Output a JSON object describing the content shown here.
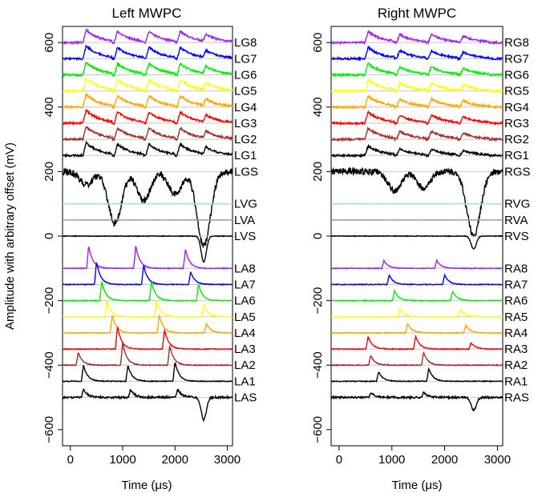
{
  "chart_data": [
    {
      "type": "line",
      "title": "Left MWPC",
      "xlabel": "Time (μs)",
      "ylabel": "Amplitude with arbitrary offset (mV)",
      "xlim": [
        -150,
        3100
      ],
      "ylim": [
        -650,
        650
      ],
      "x_ticks": [
        "0",
        "1000",
        "2000",
        "3000"
      ],
      "y_ticks": [
        "-600",
        "-400",
        "-200",
        "0",
        "200",
        "400",
        "600"
      ],
      "grid": "horizontal baseline per channel",
      "series": [
        {
          "name": "LG8",
          "color": "#A020F0",
          "baseline": 600,
          "signal": "cathode",
          "peaks": [
            [
              300,
              40
            ],
            [
              900,
              35
            ],
            [
              1500,
              35
            ],
            [
              2100,
              35
            ],
            [
              2600,
              25
            ]
          ]
        },
        {
          "name": "LG7",
          "color": "#0000FF",
          "baseline": 550,
          "signal": "cathode",
          "peaks": [
            [
              300,
              40
            ],
            [
              900,
              35
            ],
            [
              1500,
              35
            ],
            [
              2100,
              35
            ],
            [
              2600,
              25
            ]
          ]
        },
        {
          "name": "LG6",
          "color": "#00EE00",
          "baseline": 500,
          "signal": "cathode",
          "peaks": [
            [
              300,
              40
            ],
            [
              900,
              35
            ],
            [
              1500,
              35
            ],
            [
              2100,
              35
            ],
            [
              2600,
              25
            ]
          ]
        },
        {
          "name": "LG5",
          "color": "#FFFF00",
          "baseline": 450,
          "signal": "cathode",
          "peaks": [
            [
              300,
              40
            ],
            [
              900,
              35
            ],
            [
              1500,
              35
            ],
            [
              2100,
              35
            ],
            [
              2600,
              25
            ]
          ]
        },
        {
          "name": "LG4",
          "color": "#FFA500",
          "baseline": 400,
          "signal": "cathode",
          "peaks": [
            [
              300,
              40
            ],
            [
              900,
              35
            ],
            [
              1500,
              35
            ],
            [
              2100,
              35
            ],
            [
              2600,
              25
            ]
          ]
        },
        {
          "name": "LG3",
          "color": "#FF0000",
          "baseline": 350,
          "signal": "cathode",
          "peaks": [
            [
              300,
              40
            ],
            [
              900,
              35
            ],
            [
              1500,
              35
            ],
            [
              2100,
              35
            ],
            [
              2600,
              25
            ]
          ]
        },
        {
          "name": "LG2",
          "color": "#A52A2A",
          "baseline": 300,
          "signal": "cathode",
          "peaks": [
            [
              300,
              40
            ],
            [
              900,
              35
            ],
            [
              1500,
              35
            ],
            [
              2100,
              35
            ],
            [
              2600,
              25
            ]
          ]
        },
        {
          "name": "LG1",
          "color": "#000000",
          "baseline": 250,
          "signal": "cathode",
          "peaks": [
            [
              300,
              40
            ],
            [
              900,
              35
            ],
            [
              1500,
              35
            ],
            [
              2100,
              35
            ],
            [
              2600,
              25
            ]
          ]
        },
        {
          "name": "LGS",
          "color": "#000000",
          "baseline": 200,
          "signal": "sum",
          "dips": [
            [
              300,
              40
            ],
            [
              850,
              160
            ],
            [
              1400,
              90
            ],
            [
              2000,
              70
            ],
            [
              2550,
              230
            ]
          ]
        },
        {
          "name": "LVG",
          "color": "#ADD8E6",
          "baseline": 100,
          "signal": "flat"
        },
        {
          "name": "LVA",
          "color": "#999999",
          "baseline": 50,
          "signal": "flat"
        },
        {
          "name": "LVS",
          "color": "#000000",
          "baseline": 0,
          "signal": "veto",
          "dips": [
            [
              2550,
              80
            ]
          ]
        },
        {
          "name": "LA8",
          "color": "#A020F0",
          "baseline": -100,
          "signal": "anode",
          "peaks": [
            [
              350,
              70
            ],
            [
              1250,
              70
            ],
            [
              2200,
              60
            ]
          ]
        },
        {
          "name": "LA7",
          "color": "#0000FF",
          "baseline": -150,
          "signal": "anode",
          "peaks": [
            [
              500,
              70
            ],
            [
              1400,
              60
            ],
            [
              2300,
              40
            ]
          ]
        },
        {
          "name": "LA6",
          "color": "#00EE00",
          "baseline": -200,
          "signal": "anode",
          "peaks": [
            [
              600,
              60
            ],
            [
              1550,
              60
            ],
            [
              2450,
              50
            ]
          ]
        },
        {
          "name": "LA5",
          "color": "#FFFF00",
          "baseline": -250,
          "signal": "anode",
          "peaks": [
            [
              700,
              50
            ],
            [
              1650,
              50
            ],
            [
              2550,
              40
            ]
          ]
        },
        {
          "name": "LA4",
          "color": "#FFA500",
          "baseline": -300,
          "signal": "anode",
          "peaks": [
            [
              800,
              55
            ],
            [
              1700,
              55
            ],
            [
              2600,
              30
            ]
          ]
        },
        {
          "name": "LA3",
          "color": "#FF0000",
          "baseline": -350,
          "signal": "anode",
          "peaks": [
            [
              900,
              70
            ],
            [
              1800,
              60
            ]
          ]
        },
        {
          "name": "LA2",
          "color": "#A52A2A",
          "baseline": -400,
          "signal": "anode",
          "peaks": [
            [
              150,
              40
            ],
            [
              1000,
              70
            ],
            [
              1900,
              60
            ]
          ]
        },
        {
          "name": "LA1",
          "color": "#000000",
          "baseline": -450,
          "signal": "anode",
          "peaks": [
            [
              250,
              50
            ],
            [
              1100,
              50
            ],
            [
              2000,
              60
            ]
          ]
        },
        {
          "name": "LAS",
          "color": "#000000",
          "baseline": -500,
          "signal": "anodesum",
          "peaks": [
            [
              250,
              25
            ],
            [
              1150,
              25
            ],
            [
              2050,
              25
            ]
          ],
          "dips": [
            [
              2550,
              70
            ]
          ]
        }
      ]
    },
    {
      "type": "line",
      "title": "Right MWPC",
      "xlabel": "Time (μs)",
      "ylabel": "",
      "xlim": [
        -150,
        3100
      ],
      "ylim": [
        -650,
        650
      ],
      "x_ticks": [
        "0",
        "1000",
        "2000",
        "3000"
      ],
      "y_ticks": [
        "-600",
        "-400",
        "-200",
        "0",
        "200",
        "400",
        "600"
      ],
      "grid": "horizontal baseline per channel",
      "series": [
        {
          "name": "RG8",
          "color": "#A020F0",
          "baseline": 600,
          "signal": "cathode",
          "peaks": [
            [
              550,
              35
            ],
            [
              1150,
              25
            ],
            [
              1750,
              25
            ],
            [
              2350,
              20
            ]
          ]
        },
        {
          "name": "RG7",
          "color": "#0000FF",
          "baseline": 550,
          "signal": "cathode",
          "peaks": [
            [
              550,
              35
            ],
            [
              1150,
              25
            ],
            [
              1750,
              25
            ],
            [
              2350,
              20
            ]
          ]
        },
        {
          "name": "RG6",
          "color": "#00EE00",
          "baseline": 500,
          "signal": "cathode",
          "peaks": [
            [
              550,
              35
            ],
            [
              1150,
              25
            ],
            [
              1750,
              25
            ],
            [
              2350,
              20
            ]
          ]
        },
        {
          "name": "RG5",
          "color": "#FFFF00",
          "baseline": 450,
          "signal": "cathode",
          "peaks": [
            [
              550,
              35
            ],
            [
              1150,
              25
            ],
            [
              1750,
              25
            ],
            [
              2350,
              20
            ]
          ]
        },
        {
          "name": "RG4",
          "color": "#FFA500",
          "baseline": 400,
          "signal": "cathode",
          "peaks": [
            [
              550,
              35
            ],
            [
              1150,
              25
            ],
            [
              1750,
              25
            ],
            [
              2350,
              20
            ]
          ]
        },
        {
          "name": "RG3",
          "color": "#FF0000",
          "baseline": 350,
          "signal": "cathode",
          "peaks": [
            [
              550,
              35
            ],
            [
              1150,
              25
            ],
            [
              1750,
              25
            ],
            [
              2350,
              20
            ]
          ]
        },
        {
          "name": "RG2",
          "color": "#A52A2A",
          "baseline": 300,
          "signal": "cathode",
          "peaks": [
            [
              550,
              35
            ],
            [
              1150,
              25
            ],
            [
              1750,
              25
            ],
            [
              2350,
              20
            ]
          ]
        },
        {
          "name": "RG1",
          "color": "#000000",
          "baseline": 250,
          "signal": "cathode",
          "peaks": [
            [
              550,
              30
            ],
            [
              1150,
              20
            ],
            [
              1750,
              20
            ],
            [
              2350,
              15
            ]
          ]
        },
        {
          "name": "RGS",
          "color": "#000000",
          "baseline": 200,
          "signal": "sum",
          "dips": [
            [
              1050,
              60
            ],
            [
              1600,
              50
            ],
            [
              2550,
              200
            ]
          ]
        },
        {
          "name": "RVG",
          "color": "#ADD8E6",
          "baseline": 100,
          "signal": "flat"
        },
        {
          "name": "RVA",
          "color": "#999999",
          "baseline": 50,
          "signal": "flat"
        },
        {
          "name": "RVS",
          "color": "#000000",
          "baseline": 0,
          "signal": "veto",
          "dips": [
            [
              2550,
              40
            ]
          ]
        },
        {
          "name": "RA8",
          "color": "#A020F0",
          "baseline": -100,
          "signal": "anode",
          "peaks": [
            [
              850,
              25
            ],
            [
              1850,
              25
            ]
          ]
        },
        {
          "name": "RA7",
          "color": "#0000FF",
          "baseline": -150,
          "signal": "anode",
          "peaks": [
            [
              950,
              30
            ],
            [
              2000,
              30
            ]
          ]
        },
        {
          "name": "RA6",
          "color": "#00EE00",
          "baseline": -200,
          "signal": "anode",
          "peaks": [
            [
              1050,
              30
            ],
            [
              2150,
              30
            ]
          ]
        },
        {
          "name": "RA5",
          "color": "#FFFF00",
          "baseline": -250,
          "signal": "anode",
          "peaks": [
            [
              1150,
              25
            ],
            [
              2300,
              25
            ]
          ]
        },
        {
          "name": "RA4",
          "color": "#FFA500",
          "baseline": -300,
          "signal": "anode",
          "peaks": [
            [
              1300,
              30
            ],
            [
              2400,
              25
            ]
          ]
        },
        {
          "name": "RA3",
          "color": "#FF0000",
          "baseline": -350,
          "signal": "anode",
          "peaks": [
            [
              550,
              40
            ],
            [
              1450,
              40
            ],
            [
              2500,
              20
            ]
          ]
        },
        {
          "name": "RA2",
          "color": "#A52A2A",
          "baseline": -400,
          "signal": "anode",
          "peaks": [
            [
              600,
              30
            ],
            [
              1600,
              40
            ]
          ]
        },
        {
          "name": "RA1",
          "color": "#000000",
          "baseline": -450,
          "signal": "anode",
          "peaks": [
            [
              750,
              30
            ],
            [
              1700,
              40
            ]
          ]
        },
        {
          "name": "RAS",
          "color": "#000000",
          "baseline": -500,
          "signal": "anodesum",
          "peaks": [
            [
              600,
              15
            ],
            [
              1600,
              15
            ]
          ],
          "dips": [
            [
              2550,
              40
            ]
          ]
        }
      ]
    }
  ]
}
